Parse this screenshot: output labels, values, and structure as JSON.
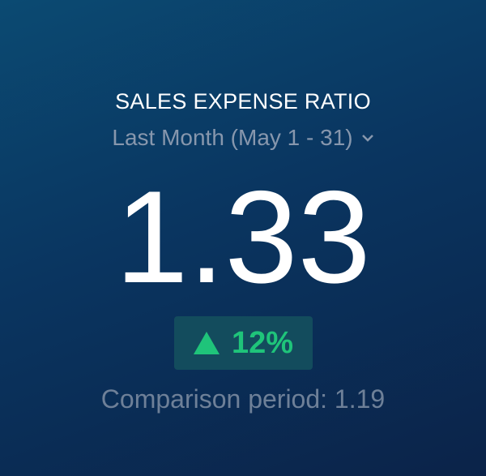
{
  "widget": {
    "title": "SALES EXPENSE RATIO",
    "period": "Last Month (May 1 - 31)",
    "value": "1.33",
    "change": "12%",
    "comparison": "Comparison period: 1.19"
  }
}
